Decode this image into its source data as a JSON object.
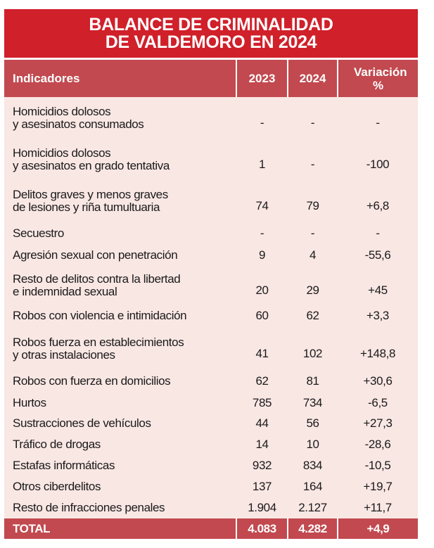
{
  "title": {
    "line1": "BALANCE DE CRIMINALIDAD",
    "line2": "DE VALDEMORO EN 2024"
  },
  "headers": {
    "indicadores": "Indicadores",
    "y2023": "2023",
    "y2024": "2024",
    "variacion": "Variación %"
  },
  "rows": [
    {
      "l1": "Homicidios dolosos",
      "l2": "y asesinatos consumados",
      "v2023": "-",
      "v2024": "-",
      "var": "-"
    },
    {
      "l1": "Homicidios dolosos",
      "l2": "y asesinatos en grado tentativa",
      "v2023": "1",
      "v2024": "-",
      "var": "-100"
    },
    {
      "l1": "Delitos graves y menos graves",
      "l2": "de lesiones y riña tumultuaria",
      "v2023": "74",
      "v2024": "79",
      "var": "+6,8"
    },
    {
      "l1": "Secuestro",
      "l2": "",
      "v2023": "-",
      "v2024": "-",
      "var": "-"
    },
    {
      "l1": "Agresión sexual con penetración",
      "l2": "",
      "v2023": "9",
      "v2024": "4",
      "var": "-55,6"
    },
    {
      "l1": "Resto de delitos contra la libertad",
      "l2": "e indemnidad sexual",
      "v2023": "20",
      "v2024": "29",
      "var": "+45"
    },
    {
      "l1": "Robos con violencia e intimidación",
      "l2": "",
      "v2023": "60",
      "v2024": "62",
      "var": "+3,3"
    },
    {
      "l1": "Robos fuerza en establecimientos",
      "l2": "y otras instalaciones",
      "v2023": "41",
      "v2024": "102",
      "var": "+148,8"
    },
    {
      "l1": "Robos con fuerza en domicilios",
      "l2": "",
      "v2023": "62",
      "v2024": "81",
      "var": "+30,6"
    },
    {
      "l1": "Hurtos",
      "l2": "",
      "v2023": "785",
      "v2024": "734",
      "var": "-6,5"
    },
    {
      "l1": "Sustracciones de vehículos",
      "l2": "",
      "v2023": "44",
      "v2024": "56",
      "var": "+27,3"
    },
    {
      "l1": "Tráfico de drogas",
      "l2": "",
      "v2023": "14",
      "v2024": "10",
      "var": "-28,6"
    },
    {
      "l1": "Estafas informáticas",
      "l2": "",
      "v2023": "932",
      "v2024": "834",
      "var": "-10,5"
    },
    {
      "l1": "Otros ciberdelitos",
      "l2": "",
      "v2023": "137",
      "v2024": "164",
      "var": "+19,7"
    },
    {
      "l1": "Resto de infracciones penales",
      "l2": "",
      "v2023": "1.904",
      "v2024": "2.127",
      "var": "+11,7"
    }
  ],
  "total": {
    "label": "TOTAL",
    "v2023": "4.083",
    "v2024": "4.282",
    "var": "+4,9"
  }
}
